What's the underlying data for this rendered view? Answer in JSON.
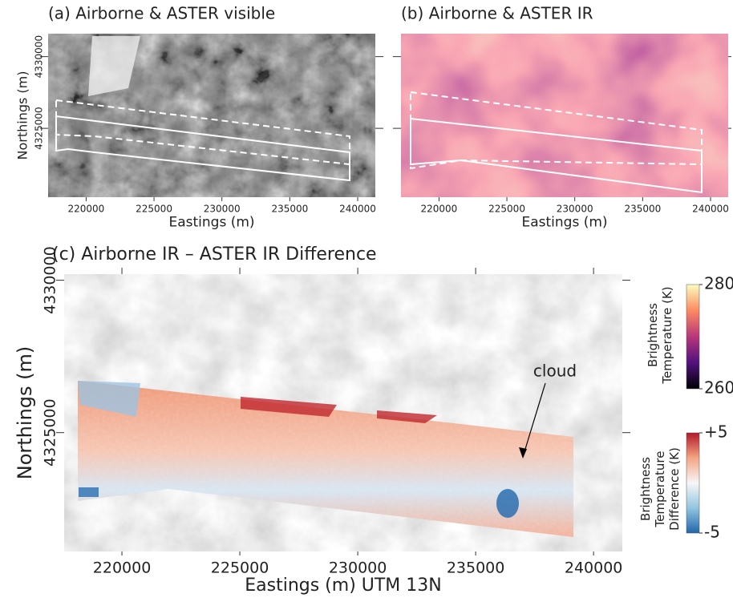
{
  "chart_data": [
    {
      "type": "map",
      "title": "(a) Airborne & ASTER visible",
      "xlabel": "Eastings (m)",
      "ylabel": "Northings (m)",
      "xlim": [
        217200,
        241300
      ],
      "ylim": [
        4320200,
        4331600
      ],
      "xticks": [
        220000,
        225000,
        230000,
        235000,
        240000
      ],
      "yticks": [
        4325000,
        4330000
      ]
    },
    {
      "type": "map",
      "title": "(b) Airborne & ASTER IR",
      "xlabel": "Eastings (m)",
      "xlim": [
        217200,
        241300
      ],
      "ylim": [
        4320200,
        4331600
      ],
      "xticks": [
        220000,
        225000,
        230000,
        235000,
        240000
      ],
      "yticks": [
        4325000,
        4330000
      ],
      "ytick_labels": false
    },
    {
      "type": "map",
      "title": "(c) Airborne IR – ASTER IR Difference",
      "xlabel": "Eastings (m) UTM 13N",
      "ylabel": "Northings (m)",
      "xlim": [
        217550,
        241220
      ],
      "ylim": [
        4321100,
        4330200
      ],
      "xticks": [
        220000,
        225000,
        230000,
        235000,
        240000
      ],
      "yticks": [
        4325000,
        4330000
      ],
      "annotation": "cloud"
    },
    {
      "type": "colorbar",
      "label": "Brightness Temperature (K)",
      "ylim": [
        260,
        280
      ],
      "yticks": [
        260,
        280
      ],
      "colors": [
        "#000004",
        "#51127c",
        "#b73779",
        "#fc8961",
        "#fcfdbf"
      ]
    },
    {
      "type": "colorbar",
      "label": "Brightness Temperature Difference (K)",
      "ylim": [
        -5,
        5
      ],
      "yticks": [
        -5,
        {
          "value": 5,
          "label": "+5"
        }
      ],
      "colors": [
        "#2166ac",
        "#92c5de",
        "#f7f7f7",
        "#f4a582",
        "#b2182b"
      ]
    }
  ]
}
